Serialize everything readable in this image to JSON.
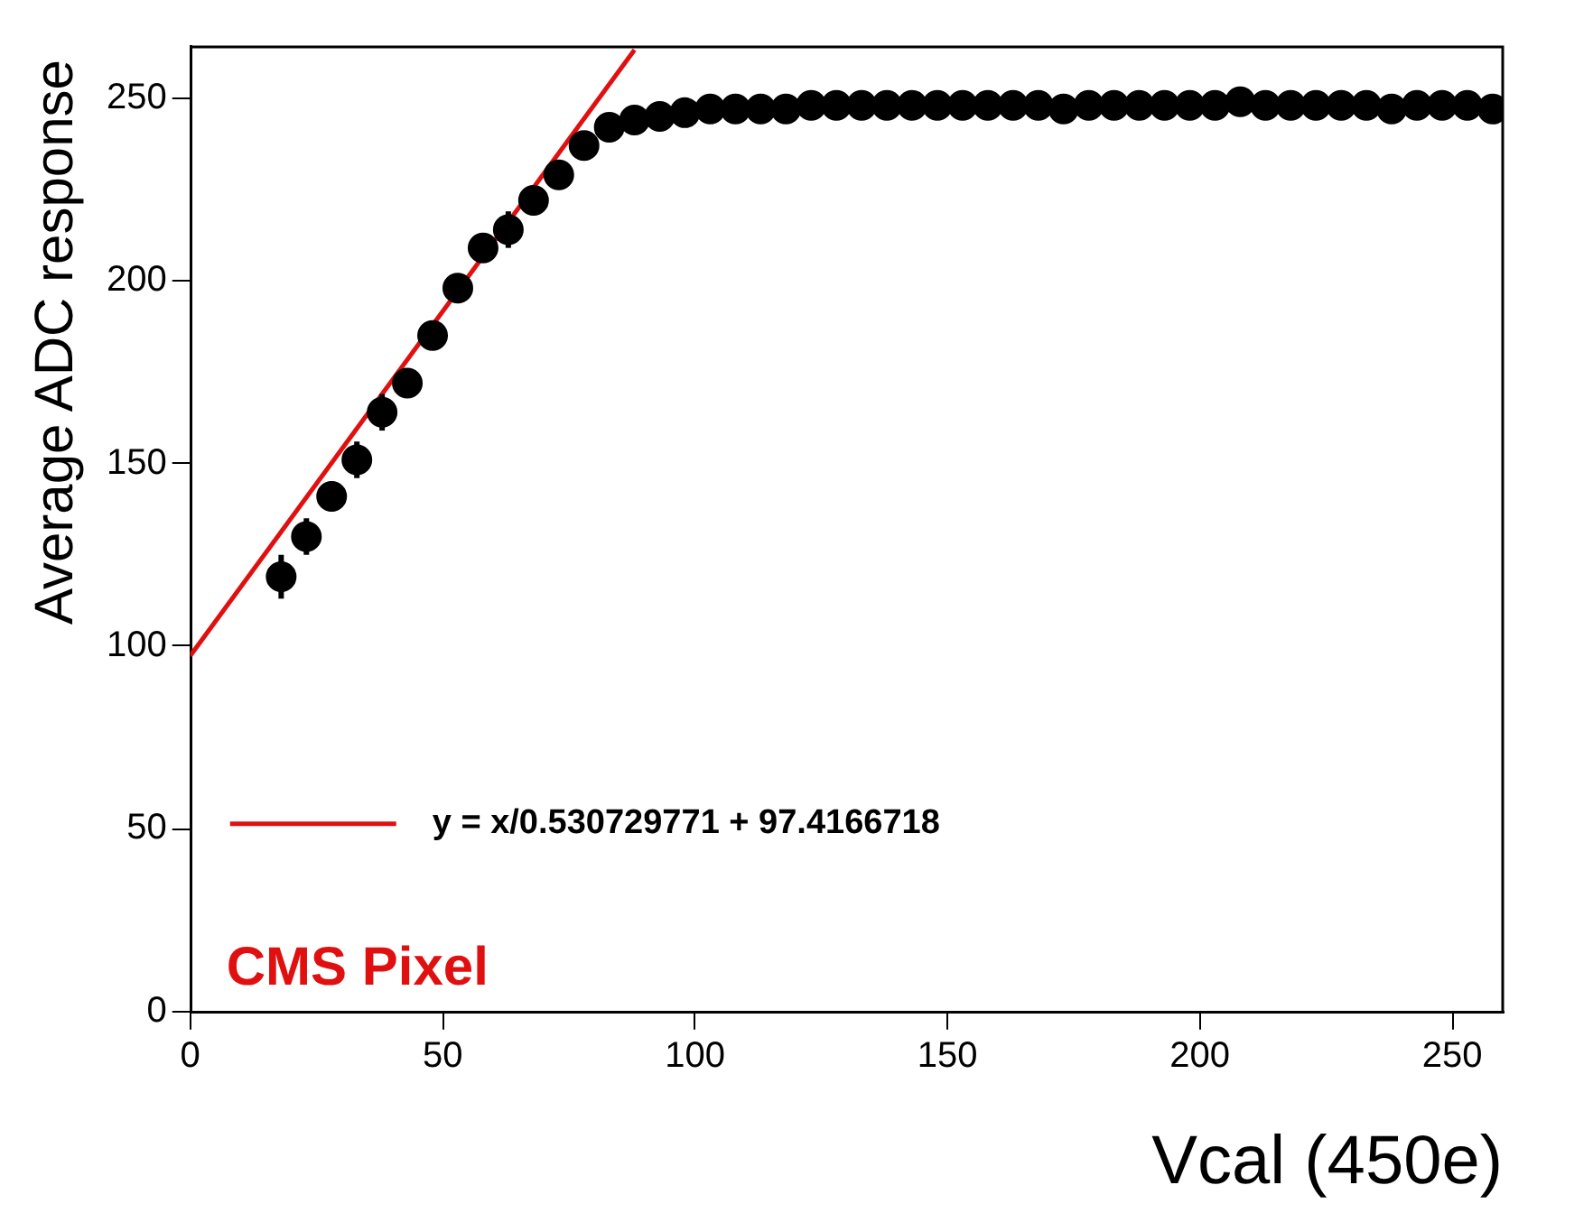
{
  "chart_data": {
    "type": "line",
    "xlabel": "Vcal (450e)",
    "ylabel": "Average ADC response",
    "xlim": [
      0,
      260
    ],
    "ylim": [
      0,
      264
    ],
    "xticks": [
      0,
      50,
      100,
      150,
      200,
      250
    ],
    "yticks": [
      0,
      50,
      100,
      150,
      200,
      250
    ],
    "grid": false,
    "legend": "bottom left",
    "marker": "circle",
    "annotations": [
      "CMS Pixel"
    ],
    "series": [
      {
        "type": "scatter",
        "color": "#000000",
        "x": [
          18,
          23,
          28,
          33,
          38,
          43,
          48,
          53,
          58,
          63,
          68,
          73,
          78,
          83,
          88,
          93,
          98,
          103,
          108,
          113,
          118,
          123,
          128,
          133,
          138,
          143,
          148,
          153,
          158,
          163,
          168,
          173,
          178,
          183,
          188,
          193,
          198,
          203,
          208,
          213,
          218,
          223,
          228,
          233,
          238,
          243,
          248,
          253,
          258
        ],
        "values": [
          119,
          130,
          141,
          151,
          164,
          172,
          185,
          198,
          209,
          214,
          222,
          229,
          237,
          242,
          244,
          245,
          246,
          247,
          247,
          247,
          247,
          248,
          248,
          248,
          248,
          248,
          248,
          248,
          248,
          248,
          248,
          247,
          248,
          248,
          248,
          248,
          248,
          248,
          249,
          248,
          248,
          248,
          248,
          248,
          247,
          248,
          248,
          248,
          247
        ],
        "errors": [
          6,
          5,
          4,
          5,
          5,
          4,
          4,
          4,
          4,
          5,
          4,
          3,
          3,
          3,
          2,
          2,
          2,
          2,
          2,
          2,
          2,
          2,
          2,
          2,
          2,
          2,
          2,
          2,
          2,
          2,
          2,
          2,
          2,
          2,
          2,
          2,
          2,
          2,
          2,
          2,
          2,
          2,
          2,
          2,
          2,
          2,
          2,
          2,
          2
        ]
      },
      {
        "name": "y = x/0.530729771 + 97.4166718",
        "color": "#e01010",
        "x": [
          0,
          88
        ],
        "values": [
          97.4,
          263.2
        ],
        "marker": "none",
        "line_style": "solid"
      }
    ]
  }
}
